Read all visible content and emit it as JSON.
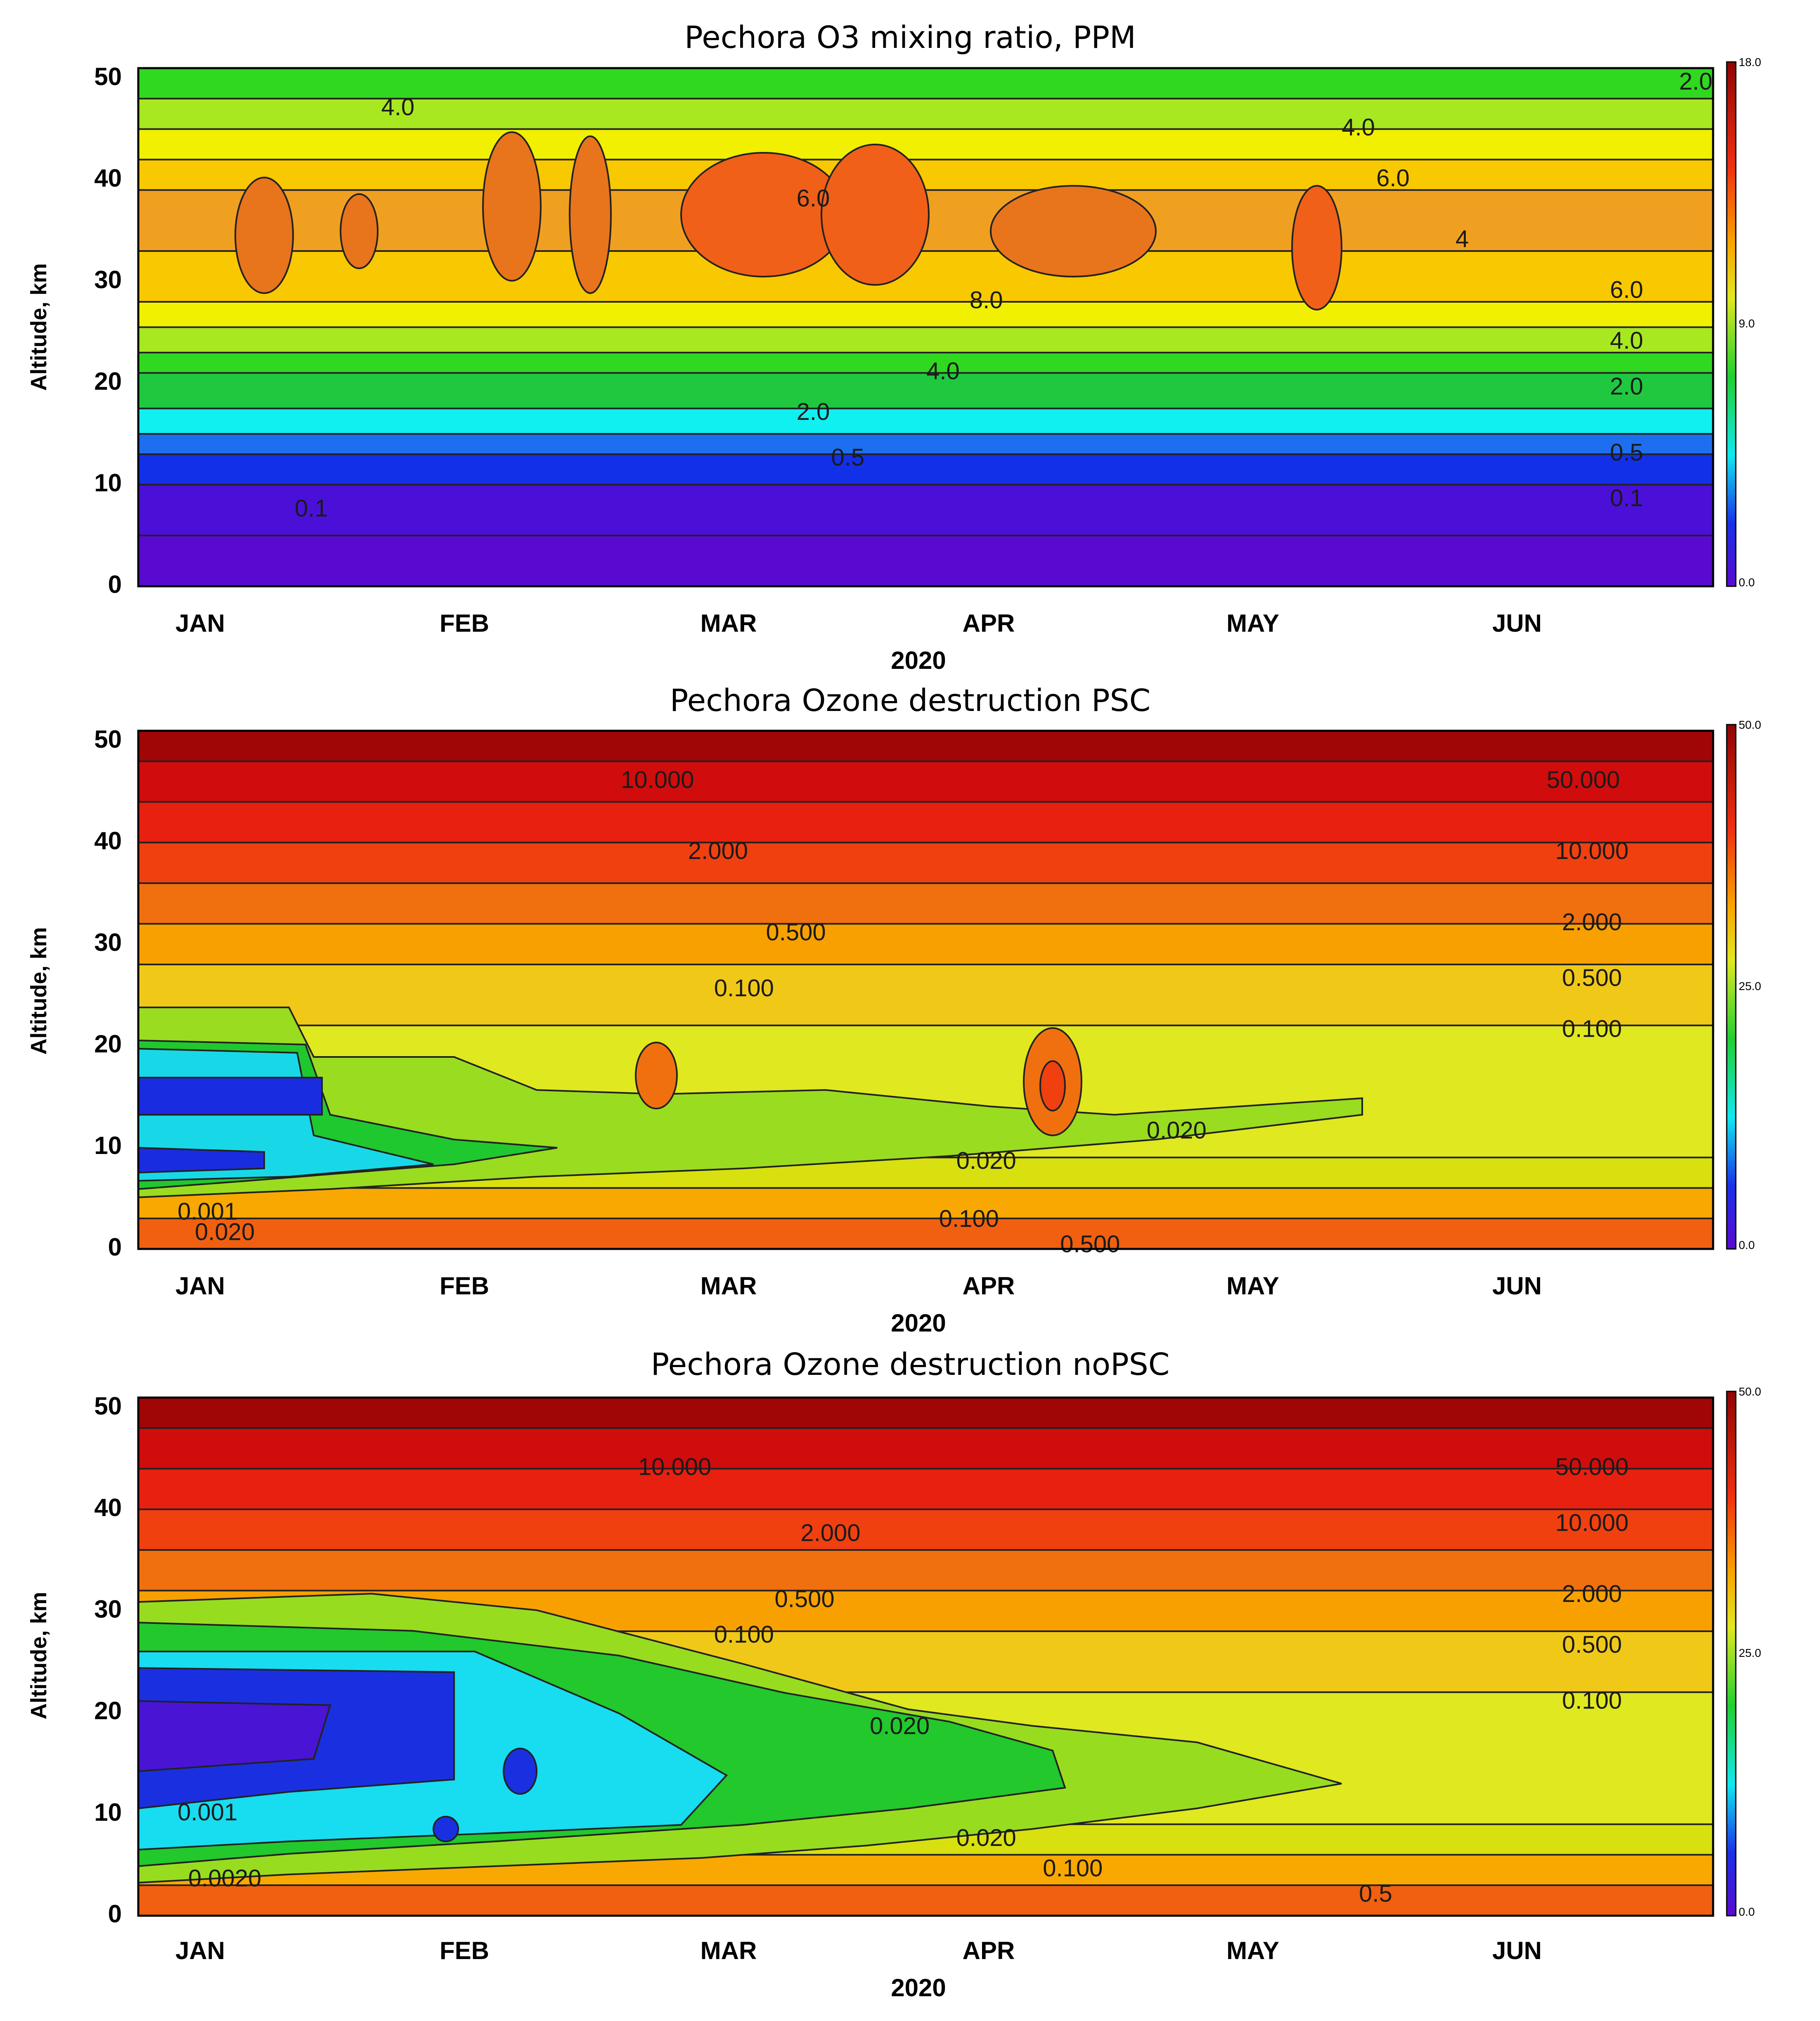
{
  "chart_data": [
    {
      "type": "heatmap",
      "title": "Pechora O3 mixing ratio, PPM",
      "xlabel": "2020",
      "ylabel": "Altitude, km",
      "x_ticks": [
        "JAN",
        "FEB",
        "MAR",
        "APR",
        "MAY",
        "JUN"
      ],
      "y_ticks": [
        "0",
        "10",
        "20",
        "30",
        "40",
        "50"
      ],
      "ylim": [
        0,
        51
      ],
      "colorbar": {
        "min": 0.0,
        "max": 18.0,
        "labels": [
          "18.0",
          "9.0",
          "0.0"
        ]
      },
      "bands": [
        {
          "alt": 0,
          "color": "#5a0ad0"
        },
        {
          "alt": 5,
          "color": "#4b10d8"
        },
        {
          "alt": 10,
          "color": "#1230e8"
        },
        {
          "alt": 13,
          "color": "#1e6ef0"
        },
        {
          "alt": 15,
          "color": "#10f0f0"
        },
        {
          "alt": 17.5,
          "color": "#20c840"
        },
        {
          "alt": 21,
          "color": "#30d820"
        },
        {
          "alt": 23,
          "color": "#a8e820"
        },
        {
          "alt": 25.5,
          "color": "#f0f000"
        },
        {
          "alt": 28,
          "color": "#f8c800"
        },
        {
          "alt": 33,
          "color": "#f0a020"
        },
        {
          "alt": 39,
          "color": "#f8c800"
        },
        {
          "alt": 42,
          "color": "#f0f000"
        },
        {
          "alt": 45,
          "color": "#a8e820"
        },
        {
          "alt": 48,
          "color": "#30d820"
        },
        {
          "alt": 51,
          "color": "#30d820"
        }
      ],
      "contour_labels": [
        {
          "text": "4.0",
          "day": 30,
          "alt": 47
        },
        {
          "text": "6.0",
          "day": 78,
          "alt": 38
        },
        {
          "text": "2.0",
          "day": 180,
          "alt": 49.5
        },
        {
          "text": "6.0",
          "day": 145,
          "alt": 40
        },
        {
          "text": "4.0",
          "day": 141,
          "alt": 45
        },
        {
          "text": "6.0",
          "day": 172,
          "alt": 29
        },
        {
          "text": "4.0",
          "day": 172,
          "alt": 24
        },
        {
          "text": "2.0",
          "day": 172,
          "alt": 19.5
        },
        {
          "text": "0.5",
          "day": 172,
          "alt": 13
        },
        {
          "text": "0.1",
          "day": 172,
          "alt": 8.5
        },
        {
          "text": "2.0",
          "day": 78,
          "alt": 17
        },
        {
          "text": "0.5",
          "day": 82,
          "alt": 12.5
        },
        {
          "text": "0.1",
          "day": 20,
          "alt": 7.5
        },
        {
          "text": "8.0",
          "day": 98,
          "alt": 28
        },
        {
          "text": "4.0",
          "day": 93,
          "alt": 21
        },
        {
          "text": "4",
          "day": 153,
          "alt": 34
        }
      ]
    },
    {
      "type": "heatmap",
      "title": "Pechora Ozone destruction PSC",
      "xlabel": "2020",
      "ylabel": "Altitude, km",
      "x_ticks": [
        "JAN",
        "FEB",
        "MAR",
        "APR",
        "MAY",
        "JUN"
      ],
      "y_ticks": [
        "0",
        "10",
        "20",
        "30",
        "40",
        "50"
      ],
      "ylim": [
        0,
        51
      ],
      "colorbar": {
        "min": 0.0,
        "max": 50.0,
        "labels": [
          "50.0",
          "25.0",
          "0.0"
        ]
      },
      "bands": [
        {
          "alt": 0,
          "color": "#f06010"
        },
        {
          "alt": 3,
          "color": "#f8a800"
        },
        {
          "alt": 6,
          "color": "#d8e010"
        },
        {
          "alt": 9,
          "color": "#e0e820"
        },
        {
          "alt": 22,
          "color": "#f0c818"
        },
        {
          "alt": 28,
          "color": "#f8a000"
        },
        {
          "alt": 32,
          "color": "#f07010"
        },
        {
          "alt": 36,
          "color": "#f04010"
        },
        {
          "alt": 40,
          "color": "#e82010"
        },
        {
          "alt": 44,
          "color": "#d00c0c"
        },
        {
          "alt": 48,
          "color": "#a00606"
        },
        {
          "alt": 51,
          "color": "#900404"
        }
      ],
      "contour_labels": [
        {
          "text": "10.000",
          "day": 60,
          "alt": 46
        },
        {
          "text": "2.000",
          "day": 67,
          "alt": 39
        },
        {
          "text": "0.500",
          "day": 76,
          "alt": 31
        },
        {
          "text": "0.100",
          "day": 70,
          "alt": 25.5
        },
        {
          "text": "50.000",
          "day": 167,
          "alt": 46
        },
        {
          "text": "10.000",
          "day": 168,
          "alt": 39
        },
        {
          "text": "2.000",
          "day": 168,
          "alt": 32
        },
        {
          "text": "0.500",
          "day": 168,
          "alt": 26.5
        },
        {
          "text": "0.100",
          "day": 168,
          "alt": 21.5
        },
        {
          "text": "0.020",
          "day": 120,
          "alt": 11.5
        },
        {
          "text": "0.020",
          "day": 98,
          "alt": 8.5
        },
        {
          "text": "0.100",
          "day": 96,
          "alt": 2.8
        },
        {
          "text": "0.500",
          "day": 110,
          "alt": 0.3
        },
        {
          "text": "0.001",
          "day": 8,
          "alt": 3.5
        },
        {
          "text": "0.020",
          "day": 10,
          "alt": 1.5
        }
      ]
    },
    {
      "type": "heatmap",
      "title": "Pechora Ozone destruction noPSC",
      "xlabel": "2020",
      "ylabel": "Altitude, km",
      "x_ticks": [
        "JAN",
        "FEB",
        "MAR",
        "APR",
        "MAY",
        "JUN"
      ],
      "y_ticks": [
        "0",
        "10",
        "20",
        "30",
        "40",
        "50"
      ],
      "ylim": [
        0,
        51
      ],
      "colorbar": {
        "min": 0.0,
        "max": 50.0,
        "labels": [
          "50.0",
          "25.0",
          "0.0"
        ]
      },
      "bands": [
        {
          "alt": 0,
          "color": "#f06010"
        },
        {
          "alt": 3,
          "color": "#f8a800"
        },
        {
          "alt": 6,
          "color": "#d8e010"
        },
        {
          "alt": 9,
          "color": "#e0e820"
        },
        {
          "alt": 22,
          "color": "#f0c818"
        },
        {
          "alt": 28,
          "color": "#f8a000"
        },
        {
          "alt": 32,
          "color": "#f07010"
        },
        {
          "alt": 36,
          "color": "#f04010"
        },
        {
          "alt": 40,
          "color": "#e82010"
        },
        {
          "alt": 44,
          "color": "#d00c0c"
        },
        {
          "alt": 48,
          "color": "#a00606"
        },
        {
          "alt": 51,
          "color": "#900404"
        }
      ],
      "contour_labels": [
        {
          "text": "10.000",
          "day": 62,
          "alt": 44
        },
        {
          "text": "2.000",
          "day": 80,
          "alt": 37.5
        },
        {
          "text": "0.500",
          "day": 77,
          "alt": 31
        },
        {
          "text": "0.100",
          "day": 70,
          "alt": 27.5
        },
        {
          "text": "0.020",
          "day": 88,
          "alt": 18.5
        },
        {
          "text": "0.020",
          "day": 98,
          "alt": 7.5
        },
        {
          "text": "0.100",
          "day": 108,
          "alt": 4.5
        },
        {
          "text": "0.5",
          "day": 143,
          "alt": 2
        },
        {
          "text": "50.000",
          "day": 168,
          "alt": 44
        },
        {
          "text": "10.000",
          "day": 168,
          "alt": 38.5
        },
        {
          "text": "2.000",
          "day": 168,
          "alt": 31.5
        },
        {
          "text": "0.500",
          "day": 168,
          "alt": 26.5
        },
        {
          "text": "0.100",
          "day": 168,
          "alt": 21
        },
        {
          "text": "0.001",
          "day": 8,
          "alt": 10
        },
        {
          "text": "0.0020",
          "day": 10,
          "alt": 3.5
        }
      ]
    }
  ]
}
